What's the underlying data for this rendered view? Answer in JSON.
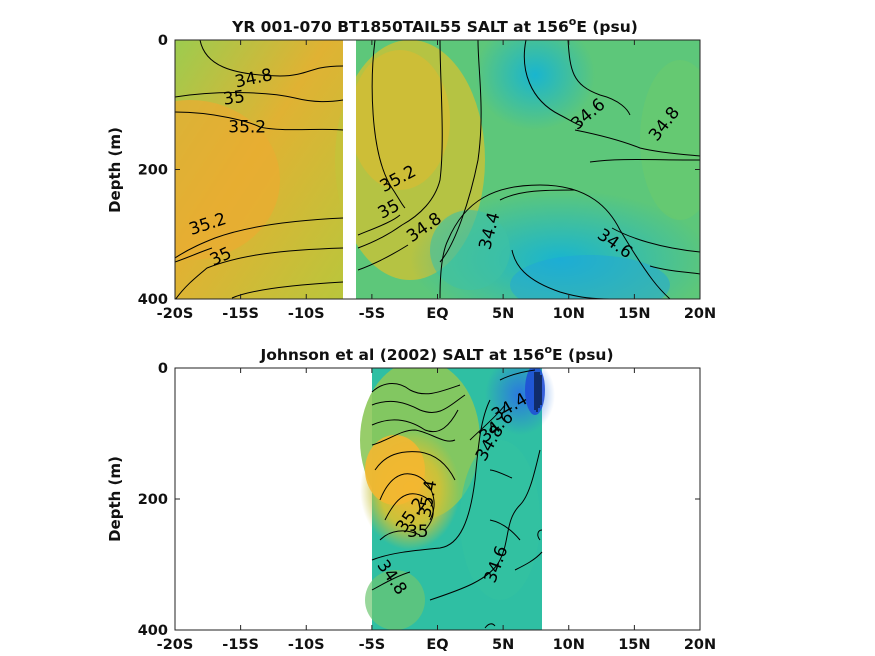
{
  "chart_data": [
    {
      "type": "heatmap",
      "title": "YR 001-070 BT1850TAIL55 SALT at 156",
      "title_sup": "o",
      "title_tail": "E (psu)",
      "ylabel": "Depth (m)",
      "xlabel": "",
      "xlim": [
        -20,
        20
      ],
      "ylim": [
        400,
        0
      ],
      "x_ticks": [
        -20,
        -15,
        -10,
        -5,
        0,
        5,
        10,
        15,
        20
      ],
      "x_tick_labels": [
        "-20S",
        "-15S",
        "-10S",
        "-5S",
        "EQ",
        "5N",
        "10N",
        "15N",
        "20N"
      ],
      "y_ticks": [
        0,
        200,
        400
      ],
      "y_tick_labels": [
        "0",
        "200",
        "400"
      ],
      "data_gaps": [
        [
          -7,
          -6.5
        ]
      ],
      "data_extent": [
        -20,
        20
      ],
      "contour_labels": [
        {
          "text": "34.8",
          "x": -14,
          "y": 60,
          "rot": -12
        },
        {
          "text": "35",
          "x": -15.5,
          "y": 90,
          "rot": -8
        },
        {
          "text": "35.2",
          "x": -14.5,
          "y": 135,
          "rot": 0
        },
        {
          "text": "35.2",
          "x": -17.5,
          "y": 285,
          "rot": -18
        },
        {
          "text": "35",
          "x": -16.5,
          "y": 335,
          "rot": -25
        },
        {
          "text": "35.2",
          "x": -3,
          "y": 215,
          "rot": -28
        },
        {
          "text": "35",
          "x": -3.7,
          "y": 262,
          "rot": -28
        },
        {
          "text": "34.8",
          "x": -1,
          "y": 290,
          "rot": -35
        },
        {
          "text": "34.4",
          "x": 4,
          "y": 295,
          "rot": -75
        },
        {
          "text": "34.6",
          "x": 11.5,
          "y": 115,
          "rot": -40
        },
        {
          "text": "34.8",
          "x": 17.3,
          "y": 130,
          "rot": -52
        },
        {
          "text": "34.6",
          "x": 13.5,
          "y": 315,
          "rot": 35
        }
      ]
    },
    {
      "type": "heatmap",
      "title": "Johnson et al (2002) SALT at 156",
      "title_sup": "o",
      "title_tail": "E (psu)",
      "ylabel": "Depth (m)",
      "xlabel": "",
      "xlim": [
        -20,
        20
      ],
      "ylim": [
        400,
        0
      ],
      "x_ticks": [
        -20,
        -15,
        -10,
        -5,
        0,
        5,
        10,
        15,
        20
      ],
      "x_tick_labels": [
        "-20S",
        "-15S",
        "-10S",
        "-5S",
        "EQ",
        "5N",
        "10N",
        "15N",
        "20N"
      ],
      "y_ticks": [
        0,
        200,
        400
      ],
      "y_tick_labels": [
        "0",
        "200",
        "400"
      ],
      "data_extent": [
        -5,
        8
      ],
      "contour_labels": [
        {
          "text": "34.4",
          "x": 5.5,
          "y": 60,
          "rot": -30
        },
        {
          "text": "34.6",
          "x": 4.5,
          "y": 90,
          "rot": -40
        },
        {
          "text": "34.8",
          "x": 4,
          "y": 115,
          "rot": -60
        },
        {
          "text": "35.4",
          "x": -0.7,
          "y": 200,
          "rot": -80
        },
        {
          "text": "35.2",
          "x": -2,
          "y": 225,
          "rot": -55
        },
        {
          "text": "35",
          "x": -1.5,
          "y": 250,
          "rot": 0
        },
        {
          "text": "34.8",
          "x": -3.5,
          "y": 320,
          "rot": 55
        },
        {
          "text": "34.6",
          "x": 4.5,
          "y": 300,
          "rot": -70
        }
      ]
    }
  ]
}
